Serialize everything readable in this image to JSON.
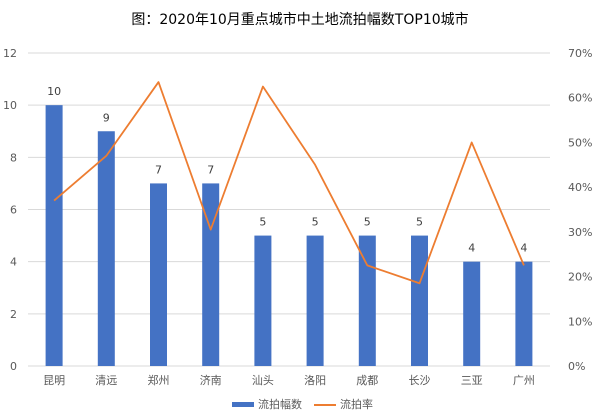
{
  "chart_data": {
    "type": "bar",
    "title": "图：2020年10月重点城市中土地流拍幅数TOP10城市",
    "categories": [
      "昆明",
      "清远",
      "郑州",
      "济南",
      "汕头",
      "洛阳",
      "成都",
      "长沙",
      "三亚",
      "广州"
    ],
    "series": [
      {
        "name": "流拍幅数",
        "type": "bar",
        "axis": "left",
        "color": "#4472c4",
        "values": [
          10,
          9,
          7,
          7,
          5,
          5,
          5,
          5,
          4,
          4
        ]
      },
      {
        "name": "流拍率",
        "type": "line",
        "axis": "right",
        "color": "#ed7d31",
        "values": [
          0.37,
          0.47,
          0.635,
          0.305,
          0.625,
          0.45,
          0.225,
          0.185,
          0.5,
          0.225
        ]
      }
    ],
    "y_left": {
      "ylim": [
        0,
        12
      ],
      "ticks": [
        "0",
        "2",
        "4",
        "6",
        "8",
        "10",
        "12"
      ]
    },
    "y_right": {
      "ylim": [
        0,
        0.7
      ],
      "ticks": [
        "0%",
        "10%",
        "20%",
        "30%",
        "40%",
        "50%",
        "60%",
        "70%"
      ]
    },
    "data_labels": [
      "10",
      "9",
      "7",
      "7",
      "5",
      "5",
      "5",
      "5",
      "4",
      "4"
    ],
    "grid": true,
    "legend_position": "bottom"
  }
}
